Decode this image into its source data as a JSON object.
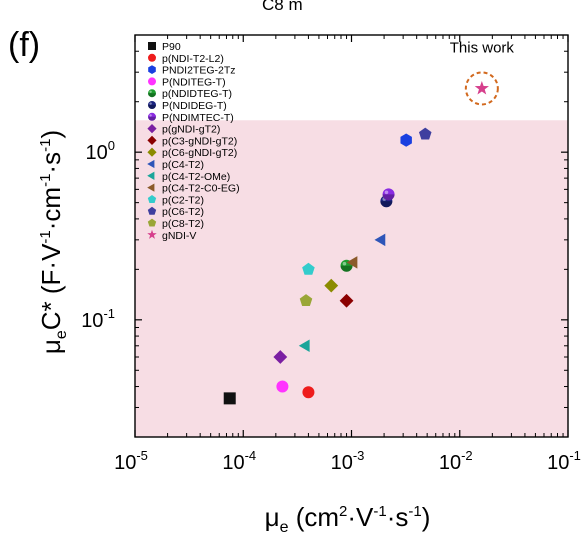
{
  "chart_data": {
    "type": "scatter",
    "panel_label": "(f)",
    "top_text_cropped": "C8     m",
    "xlabel": {
      "base": "μ",
      "sub": "e",
      "rest": " (cm",
      "sup1": "2",
      "mid": "·V",
      "sup2": "-1",
      "mid2": "·s",
      "sup3": "-1",
      "end": ")"
    },
    "ylabel": {
      "base": "μ",
      "sub": "e",
      "rest": "C* (F·V",
      "sup1": "-1",
      "mid": "·cm",
      "sup2": "-1",
      "mid2": "·s",
      "sup3": "-1",
      "end": ")"
    },
    "x_scale": "log",
    "y_scale": "log",
    "xlim": [
      1e-05,
      0.1
    ],
    "ylim": [
      0.02,
      5
    ],
    "x_ticks": [
      {
        "value": 1e-05,
        "base": "10",
        "exp": "-5"
      },
      {
        "value": 0.0001,
        "base": "10",
        "exp": "-4"
      },
      {
        "value": 0.001,
        "base": "10",
        "exp": "-3"
      },
      {
        "value": 0.01,
        "base": "10",
        "exp": "-2"
      },
      {
        "value": 0.1,
        "base": "10",
        "exp": "-1"
      }
    ],
    "y_ticks": [
      {
        "value": 0.1,
        "base": "10",
        "exp": "-1"
      },
      {
        "value": 1,
        "base": "10",
        "exp": "0"
      }
    ],
    "shaded_region": {
      "y_max": 1.55,
      "color": "#f7dde4"
    },
    "legend_position": "top-left",
    "series": [
      {
        "name": "P90",
        "marker": "square",
        "color": "#111111",
        "points": [
          [
            7.5e-05,
            0.034
          ]
        ]
      },
      {
        "name": "p(NDI-T2-L2)",
        "marker": "circle",
        "color": "#ee1c1c",
        "points": [
          [
            0.0004,
            0.037
          ]
        ]
      },
      {
        "name": "PNDI2TEG-2Tz",
        "marker": "hexagon",
        "color": "#1a3fe0",
        "points": [
          [
            0.0032,
            1.18
          ]
        ]
      },
      {
        "name": "P(NDITEG-T)",
        "marker": "circle",
        "color": "#ff33ff",
        "points": [
          [
            0.00023,
            0.04
          ]
        ]
      },
      {
        "name": "p(NDIDTEG-T)",
        "marker": "circle-half",
        "color": "#1e9e2f",
        "points": [
          [
            0.0009,
            0.21
          ]
        ]
      },
      {
        "name": "P(NDIDEG-T)",
        "marker": "circle-half",
        "color": "#1a237e",
        "points": [
          [
            0.0021,
            0.51
          ]
        ]
      },
      {
        "name": "P(NDIMTEC-T)",
        "marker": "circle-half",
        "color": "#8a2be2",
        "points": [
          [
            0.0022,
            0.56
          ]
        ]
      },
      {
        "name": "p(gNDI-gT2)",
        "marker": "diamond",
        "color": "#7b1fa2",
        "points": [
          [
            0.00022,
            0.06
          ]
        ]
      },
      {
        "name": "p(C3-gNDI-gT2)",
        "marker": "diamond",
        "color": "#8b0000",
        "points": [
          [
            0.0009,
            0.13
          ]
        ]
      },
      {
        "name": "p(C6-gNDI-gT2)",
        "marker": "diamond",
        "color": "#8b8b00",
        "points": [
          [
            0.00065,
            0.16
          ]
        ]
      },
      {
        "name": "p(C4-T2)",
        "marker": "triangle-left",
        "color": "#2e55b8",
        "points": [
          [
            0.0019,
            0.3
          ]
        ]
      },
      {
        "name": "p(C4-T2-OMe)",
        "marker": "triangle-left",
        "color": "#1aa59a",
        "points": [
          [
            0.00038,
            0.07
          ]
        ]
      },
      {
        "name": "p(C4-T2-C0-EG)",
        "marker": "triangle-left",
        "color": "#8b5a2b",
        "points": [
          [
            0.00105,
            0.22
          ]
        ]
      },
      {
        "name": "p(C2-T2)",
        "marker": "pentagon",
        "color": "#33cccc",
        "points": [
          [
            0.0004,
            0.2
          ]
        ]
      },
      {
        "name": "p(C6-T2)",
        "marker": "pentagon",
        "color": "#3f3f9f",
        "points": [
          [
            0.0048,
            1.28
          ]
        ]
      },
      {
        "name": "p(C8-T2)",
        "marker": "pentagon",
        "color": "#9aa637",
        "points": [
          [
            0.00038,
            0.13
          ]
        ]
      },
      {
        "name": "gNDI-V",
        "marker": "star",
        "color": "#d63f8c",
        "points": [
          [
            0.016,
            2.4
          ]
        ]
      }
    ],
    "annotations": [
      {
        "text": "This work",
        "at": [
          0.016,
          4.2
        ],
        "circle_color": "#d2691e"
      }
    ]
  }
}
